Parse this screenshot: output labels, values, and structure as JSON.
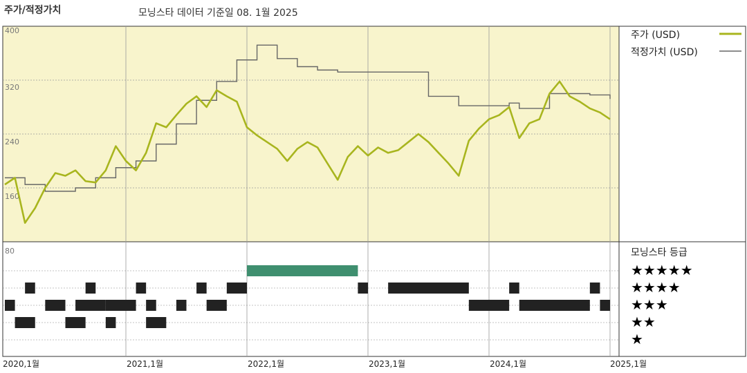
{
  "header": {
    "title": "주가/적정가치",
    "subtitle": "모닝스타 데이터 기준일 08. 1월 2025"
  },
  "legend": {
    "price_label": "주가 (USD)",
    "fair_label": "적정가치 (USD)"
  },
  "rating_panel": {
    "title": "모닝스타 등급",
    "rows": [
      "★★★★★",
      "★★★★",
      "★★★",
      "★★",
      "★"
    ]
  },
  "colors": {
    "price": "#a8b51e",
    "fair_value": "#666666",
    "plot_bg": "#f8f4cc",
    "five_star": "#3f8f6f",
    "rating_bars": "#222222"
  },
  "chart_data": {
    "type": "line",
    "title": "주가/적정가치",
    "subtitle": "모닝스타 데이터 기준일 08. 1월 2025",
    "y_ticks": [
      "400",
      "320",
      "240",
      "160",
      "80"
    ],
    "ylim": [
      80,
      400
    ],
    "xlim": [
      "2020-01",
      "2025-01"
    ],
    "x_tick_labels": [
      "2020,1월",
      "2021,1월",
      "2022,1월",
      "2023,1월",
      "2024,1월",
      "2025,1월"
    ],
    "series": [
      {
        "name": "주가 (USD)",
        "points": [
          [
            "2020-01",
            165
          ],
          [
            "2020-02",
            175
          ],
          [
            "2020-03",
            108
          ],
          [
            "2020-04",
            130
          ],
          [
            "2020-05",
            160
          ],
          [
            "2020-06",
            182
          ],
          [
            "2020-07",
            178
          ],
          [
            "2020-08",
            186
          ],
          [
            "2020-09",
            170
          ],
          [
            "2020-10",
            168
          ],
          [
            "2020-11",
            186
          ],
          [
            "2020-12",
            222
          ],
          [
            "2021-01",
            200
          ],
          [
            "2021-02",
            186
          ],
          [
            "2021-03",
            212
          ],
          [
            "2021-04",
            256
          ],
          [
            "2021-05",
            250
          ],
          [
            "2021-06",
            268
          ],
          [
            "2021-07",
            285
          ],
          [
            "2021-08",
            296
          ],
          [
            "2021-09",
            280
          ],
          [
            "2021-10",
            305
          ],
          [
            "2021-11",
            296
          ],
          [
            "2021-12",
            288
          ],
          [
            "2022-01",
            250
          ],
          [
            "2022-02",
            238
          ],
          [
            "2022-03",
            228
          ],
          [
            "2022-04",
            218
          ],
          [
            "2022-05",
            200
          ],
          [
            "2022-06",
            218
          ],
          [
            "2022-07",
            228
          ],
          [
            "2022-08",
            220
          ],
          [
            "2022-09",
            196
          ],
          [
            "2022-10",
            172
          ],
          [
            "2022-11",
            206
          ],
          [
            "2022-12",
            222
          ],
          [
            "2023-01",
            208
          ],
          [
            "2023-02",
            220
          ],
          [
            "2023-03",
            212
          ],
          [
            "2023-04",
            216
          ],
          [
            "2023-05",
            228
          ],
          [
            "2023-06",
            240
          ],
          [
            "2023-07",
            228
          ],
          [
            "2023-08",
            212
          ],
          [
            "2023-09",
            196
          ],
          [
            "2023-10",
            178
          ],
          [
            "2023-11",
            230
          ],
          [
            "2023-12",
            248
          ],
          [
            "2024-01",
            262
          ],
          [
            "2024-02",
            268
          ],
          [
            "2024-03",
            280
          ],
          [
            "2024-04",
            234
          ],
          [
            "2024-05",
            256
          ],
          [
            "2024-06",
            262
          ],
          [
            "2024-07",
            300
          ],
          [
            "2024-08",
            318
          ],
          [
            "2024-09",
            296
          ],
          [
            "2024-10",
            288
          ],
          [
            "2024-11",
            278
          ],
          [
            "2024-12",
            272
          ],
          [
            "2025-01",
            262
          ]
        ]
      },
      {
        "name": "적정가치 (USD)",
        "points": [
          [
            "2020-01",
            175
          ],
          [
            "2020-03",
            165
          ],
          [
            "2020-05",
            155
          ],
          [
            "2020-08",
            160
          ],
          [
            "2020-10",
            175
          ],
          [
            "2020-12",
            190
          ],
          [
            "2021-02",
            200
          ],
          [
            "2021-04",
            225
          ],
          [
            "2021-06",
            255
          ],
          [
            "2021-08",
            290
          ],
          [
            "2021-10",
            318
          ],
          [
            "2021-12",
            350
          ],
          [
            "2022-02",
            372
          ],
          [
            "2022-04",
            352
          ],
          [
            "2022-06",
            340
          ],
          [
            "2022-08",
            335
          ],
          [
            "2022-10",
            332
          ],
          [
            "2022-12",
            332
          ],
          [
            "2023-06",
            332
          ],
          [
            "2023-07",
            296
          ],
          [
            "2023-10",
            282
          ],
          [
            "2024-01",
            282
          ],
          [
            "2024-03",
            286
          ],
          [
            "2024-04",
            278
          ],
          [
            "2024-06",
            278
          ],
          [
            "2024-07",
            300
          ],
          [
            "2024-09",
            300
          ],
          [
            "2024-11",
            298
          ],
          [
            "2025-01",
            292
          ]
        ]
      }
    ],
    "ratings": {
      "levels": [
        "★★★★★",
        "★★★★",
        "★★★",
        "★★",
        "★"
      ],
      "segments": [
        {
          "stars": 5,
          "from": "2022-01",
          "to": "2022-12"
        },
        {
          "stars": 4,
          "from": "2020-03",
          "to": "2020-04"
        },
        {
          "stars": 4,
          "from": "2020-09",
          "to": "2020-10"
        },
        {
          "stars": 4,
          "from": "2021-02",
          "to": "2021-03"
        },
        {
          "stars": 4,
          "from": "2021-08",
          "to": "2021-09"
        },
        {
          "stars": 4,
          "from": "2021-11",
          "to": "2022-01"
        },
        {
          "stars": 4,
          "from": "2022-12",
          "to": "2023-01"
        },
        {
          "stars": 4,
          "from": "2023-03",
          "to": "2023-11"
        },
        {
          "stars": 4,
          "from": "2024-03",
          "to": "2024-04"
        },
        {
          "stars": 4,
          "from": "2024-11",
          "to": "2024-12"
        },
        {
          "stars": 3,
          "from": "2020-01",
          "to": "2020-02"
        },
        {
          "stars": 3,
          "from": "2020-05",
          "to": "2020-07"
        },
        {
          "stars": 3,
          "from": "2020-08",
          "to": "2020-11"
        },
        {
          "stars": 3,
          "from": "2020-11",
          "to": "2021-01"
        },
        {
          "stars": 3,
          "from": "2021-01",
          "to": "2021-02"
        },
        {
          "stars": 3,
          "from": "2021-03",
          "to": "2021-04"
        },
        {
          "stars": 3,
          "from": "2021-06",
          "to": "2021-07"
        },
        {
          "stars": 3,
          "from": "2021-09",
          "to": "2021-11"
        },
        {
          "stars": 3,
          "from": "2023-11",
          "to": "2024-03"
        },
        {
          "stars": 3,
          "from": "2024-04",
          "to": "2024-11"
        },
        {
          "stars": 3,
          "from": "2024-12",
          "to": "2025-01"
        },
        {
          "stars": 2,
          "from": "2020-02",
          "to": "2020-04"
        },
        {
          "stars": 2,
          "from": "2020-07",
          "to": "2020-09"
        },
        {
          "stars": 2,
          "from": "2020-11",
          "to": "2020-12"
        },
        {
          "stars": 2,
          "from": "2021-03",
          "to": "2021-05"
        }
      ]
    }
  }
}
